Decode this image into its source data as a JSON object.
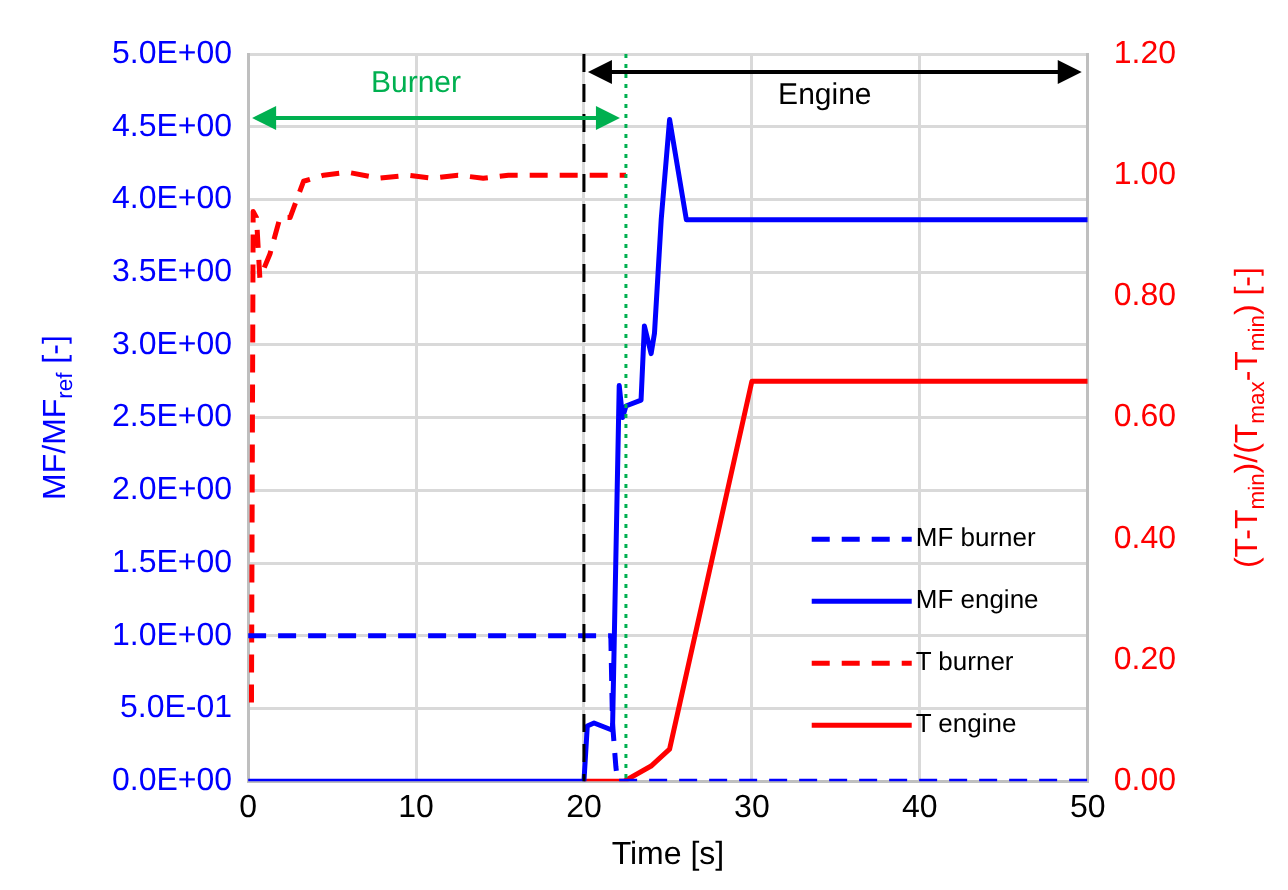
{
  "chart_data": {
    "type": "line",
    "xlabel": "Time [s]",
    "ylabel": "MF/MF$_{ref}$ [-]",
    "y2label": "(T-T$_{min}$)/(T$_{max}$-T$_{min}$) [-]",
    "xlim": [
      0,
      50
    ],
    "xticks": [
      0,
      10,
      20,
      30,
      40,
      50
    ],
    "ylim": [
      0,
      5
    ],
    "yticks": [
      {
        "value": 0,
        "label": "0.0E+00"
      },
      {
        "value": 0.5,
        "label": "5.0E-01"
      },
      {
        "value": 1,
        "label": "1.0E+00"
      },
      {
        "value": 1.5,
        "label": "1.5E+00"
      },
      {
        "value": 2,
        "label": "2.0E+00"
      },
      {
        "value": 2.5,
        "label": "2.5E+00"
      },
      {
        "value": 3,
        "label": "3.0E+00"
      },
      {
        "value": 3.5,
        "label": "3.5E+00"
      },
      {
        "value": 4,
        "label": "4.0E+00"
      },
      {
        "value": 4.5,
        "label": "4.5E+00"
      },
      {
        "value": 5,
        "label": "5.0E+00"
      }
    ],
    "y2lim": [
      0,
      1.2
    ],
    "y2ticks": [
      {
        "value": 0,
        "label": "0.00"
      },
      {
        "value": 0.2,
        "label": "0.20"
      },
      {
        "value": 0.4,
        "label": "0.40"
      },
      {
        "value": 0.6,
        "label": "0.60"
      },
      {
        "value": 0.8,
        "label": "0.80"
      },
      {
        "value": 1,
        "label": "1.00"
      },
      {
        "value": 1.2,
        "label": "1.20"
      }
    ],
    "grid": true,
    "legend": "bottom right",
    "marker": "none",
    "series": [
      {
        "name": "MF burner",
        "color": "#0000ff",
        "line_style": "dashed",
        "x": [
          0,
          21.6,
          21.7,
          21.9,
          22.0,
          50
        ],
        "values": [
          1,
          1,
          0.4,
          0.1,
          0,
          0
        ]
      },
      {
        "name": "MF engine",
        "color": "#0000ff",
        "line_style": "solid",
        "x": [
          0,
          20,
          20.2,
          20.6,
          21.7,
          22.1,
          22.3,
          22.5,
          23.4,
          23.6,
          24.0,
          24.2,
          24.6,
          25.1,
          26.1,
          50
        ],
        "values": [
          0,
          0,
          0.38,
          0.4,
          0.35,
          2.72,
          2.5,
          2.58,
          2.62,
          3.13,
          2.94,
          3.08,
          3.86,
          4.55,
          3.86,
          3.86
        ]
      },
      {
        "name": "T burner",
        "color": "#ff0000",
        "line_style": "dashed",
        "axis": "y2",
        "x": [
          0.2,
          0.3,
          0.5,
          0.7,
          1.3,
          1.9,
          2.5,
          3.3,
          4.5,
          5.9,
          7.8,
          9.5,
          11,
          12.5,
          14,
          15.5,
          22.5
        ],
        "values": [
          0.13,
          0.94,
          0.93,
          0.83,
          0.87,
          0.93,
          0.93,
          0.99,
          1.0,
          1.005,
          0.995,
          1.0,
          0.995,
          1.0,
          0.995,
          1.0,
          1.0
        ]
      },
      {
        "name": "T engine",
        "color": "#ff0000",
        "line_style": "solid",
        "axis": "y2",
        "x": [
          20,
          22.4,
          24.0,
          25.1,
          30.0,
          50
        ],
        "values": [
          0,
          0,
          0.025,
          0.053,
          0.66,
          0.66
        ]
      }
    ],
    "ref_lines": [
      {
        "axis": "x",
        "value": 20,
        "color": "#000000",
        "line_style": "dashed"
      },
      {
        "axis": "x",
        "value": 22.5,
        "color": "#00b050",
        "line_style": "dotted"
      }
    ],
    "annotations": [
      "Burner",
      "Engine"
    ]
  }
}
